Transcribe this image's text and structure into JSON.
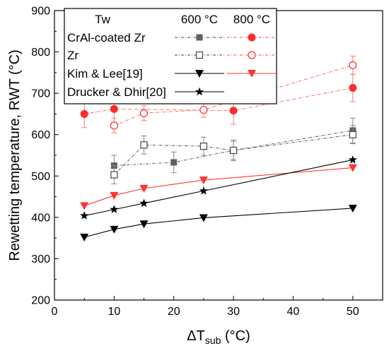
{
  "chart_data": {
    "type": "line",
    "xlabel": "ΔT",
    "xlabel_sub": "sub",
    "xlabel_unit": " (°C)",
    "ylabel": "Rewetting temperature, RWT (°C)",
    "xlim": [
      0,
      55
    ],
    "ylim": [
      200,
      900
    ],
    "xticks": [
      0,
      10,
      20,
      30,
      40,
      50
    ],
    "yticks": [
      200,
      300,
      400,
      500,
      600,
      700,
      800,
      900
    ],
    "grid": false,
    "legend": {
      "placement": "top-left",
      "header": "Tw",
      "columns": [
        "600 °C",
        "800 °C"
      ],
      "rows": [
        "CrAl-coated Zr",
        "Zr",
        "Kim & Lee[19]",
        "Drucker & Dhir[20]"
      ]
    },
    "colors": {
      "t600": "#555555",
      "t800": "#ff2a2a",
      "t800_error": "#f08080",
      "t600_error": "#8a8a8a"
    },
    "series": [
      {
        "name": "CrAl-coated Zr, 600 °C",
        "row": 0,
        "col": 0,
        "color": "#606060",
        "marker": "square-filled",
        "line": "dash-dot",
        "x": [
          10,
          20,
          30,
          50
        ],
        "y": [
          525,
          533,
          562,
          610
        ],
        "err": [
          25,
          25,
          25,
          30
        ]
      },
      {
        "name": "CrAl-coated Zr, 800 °C",
        "row": 0,
        "col": 1,
        "color": "#ff2a2a",
        "marker": "circle-filled",
        "line": "dash-dot",
        "x": [
          5,
          10,
          30,
          50
        ],
        "y": [
          650,
          662,
          658,
          713
        ],
        "err": [
          33,
          33,
          33,
          33
        ]
      },
      {
        "name": "Zr, 600 °C",
        "row": 1,
        "col": 0,
        "color": "#444444",
        "marker": "square-open",
        "line": "dash-dot",
        "x": [
          10,
          15,
          25,
          30,
          50
        ],
        "y": [
          503,
          575,
          572,
          562,
          600
        ],
        "err": [
          22,
          22,
          22,
          22,
          22
        ]
      },
      {
        "name": "Zr, 800 °C",
        "row": 1,
        "col": 1,
        "color": "#ff2a2a",
        "marker": "circle-open",
        "line": "dash-dot",
        "x": [
          10,
          15,
          25,
          50
        ],
        "y": [
          622,
          652,
          660,
          768
        ],
        "err": [
          18,
          18,
          18,
          22
        ]
      },
      {
        "name": "Kim & Lee[19], 600 °C",
        "row": 2,
        "col": 0,
        "color": "#000000",
        "marker": "triangle-down-filled",
        "line": "solid",
        "x": [
          5,
          10,
          15,
          25,
          50
        ],
        "y": [
          352,
          371,
          384,
          399,
          422
        ],
        "err": []
      },
      {
        "name": "Kim & Lee[19], 800 °C",
        "row": 2,
        "col": 1,
        "color": "#ff3333",
        "marker": "triangle-down-filled",
        "line": "solid",
        "x": [
          5,
          10,
          15,
          25,
          50
        ],
        "y": [
          428,
          453,
          470,
          490,
          520
        ],
        "err": []
      },
      {
        "name": "Drucker & Dhir[20], 600 °C",
        "row": 3,
        "col": 0,
        "color": "#000000",
        "marker": "star-filled",
        "line": "solid",
        "x": [
          5,
          10,
          15,
          25,
          50
        ],
        "y": [
          404,
          419,
          434,
          464,
          539
        ],
        "err": []
      }
    ]
  }
}
